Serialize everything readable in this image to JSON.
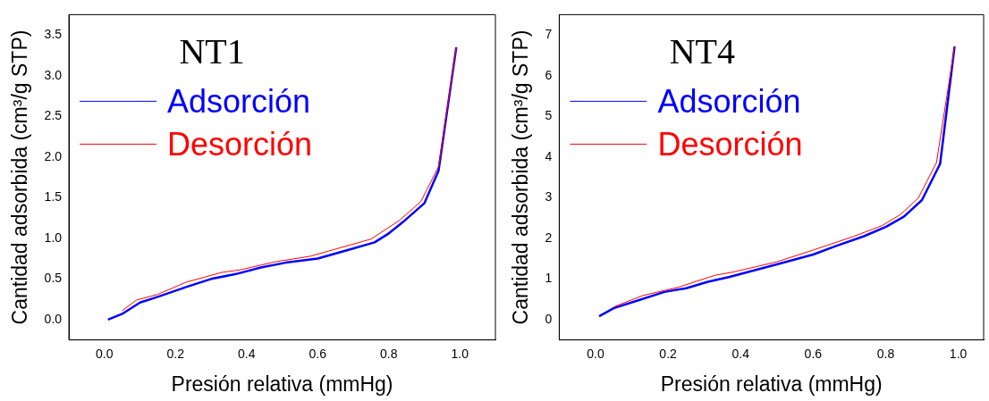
{
  "chart_data": [
    {
      "type": "line",
      "title": "NT1",
      "xlabel": "Presión relativa (mmHg)",
      "ylabel": "Cantidad adsorbida (cm³/g STP)",
      "legend": "top left",
      "grid": false,
      "marker": "none",
      "line_style": "solid",
      "xlim": [
        -0.1,
        1.1
      ],
      "xticks": [
        {
          "value": 0,
          "label": "0.0"
        },
        {
          "value": 0.2,
          "label": "0.2"
        },
        {
          "value": 0.4,
          "label": "0.4"
        },
        {
          "value": 0.6,
          "label": "0.6"
        },
        {
          "value": 0.8,
          "label": "0.8"
        },
        {
          "value": 1,
          "label": "1.0"
        }
      ],
      "ylim": [
        -0.25,
        3.75
      ],
      "yticks": [
        {
          "value": 0,
          "label": "0.0"
        },
        {
          "value": 0.5,
          "label": "0.5"
        },
        {
          "value": 1,
          "label": "1.0"
        },
        {
          "value": 1.5,
          "label": "1.5"
        },
        {
          "value": 2,
          "label": "2.0"
        },
        {
          "value": 2.5,
          "label": "2.5"
        },
        {
          "value": 3,
          "label": "3.0"
        },
        {
          "value": 3.5,
          "label": "3.5"
        }
      ],
      "series": [
        {
          "name": "Adsorción",
          "color": "#0000ff",
          "x": [
            0.01,
            0.05,
            0.1,
            0.15,
            0.23,
            0.3,
            0.37,
            0.44,
            0.51,
            0.6,
            0.68,
            0.76,
            0.8,
            0.84,
            0.9,
            0.94,
            0.99
          ],
          "values": [
            0.0,
            0.07,
            0.21,
            0.28,
            0.4,
            0.5,
            0.56,
            0.64,
            0.7,
            0.75,
            0.85,
            0.95,
            1.06,
            1.2,
            1.43,
            1.83,
            3.35
          ]
        },
        {
          "name": "Desorción",
          "color": "#ff0000",
          "x": [
            0.05,
            0.09,
            0.15,
            0.23,
            0.33,
            0.38,
            0.48,
            0.58,
            0.75,
            0.83,
            0.89,
            0.94,
            0.99
          ],
          "values": [
            0.11,
            0.24,
            0.31,
            0.46,
            0.58,
            0.61,
            0.71,
            0.78,
            0.99,
            1.22,
            1.45,
            1.88,
            3.35
          ]
        }
      ]
    },
    {
      "type": "line",
      "title": "NT4",
      "xlabel": "Presión relativa (mmHg)",
      "ylabel": "Cantidad adsorbida (cm³/g STP)",
      "legend": "top left",
      "grid": false,
      "marker": "none",
      "line_style": "solid",
      "xlim": [
        -0.1,
        1.07
      ],
      "xticks": [
        {
          "value": 0,
          "label": "0.0"
        },
        {
          "value": 0.2,
          "label": "0.2"
        },
        {
          "value": 0.4,
          "label": "0.4"
        },
        {
          "value": 0.6,
          "label": "0.6"
        },
        {
          "value": 0.8,
          "label": "0.8"
        },
        {
          "value": 1,
          "label": "1.0"
        }
      ],
      "ylim": [
        -0.5,
        7.5
      ],
      "yticks": [
        0,
        1,
        2,
        3,
        4,
        5,
        6,
        7
      ],
      "series": [
        {
          "name": "Adsorción",
          "color": "#0000ff",
          "x": [
            0.01,
            0.05,
            0.12,
            0.19,
            0.25,
            0.31,
            0.37,
            0.5,
            0.6,
            0.66,
            0.74,
            0.8,
            0.85,
            0.9,
            0.95,
            0.99
          ],
          "values": [
            0.08,
            0.28,
            0.48,
            0.68,
            0.77,
            0.93,
            1.05,
            1.36,
            1.6,
            1.8,
            2.05,
            2.28,
            2.53,
            2.94,
            3.83,
            6.72
          ]
        },
        {
          "name": "Desorción",
          "color": "#ff0000",
          "x": [
            0.05,
            0.13,
            0.23,
            0.33,
            0.38,
            0.5,
            0.6,
            0.71,
            0.79,
            0.84,
            0.89,
            0.94,
            0.99
          ],
          "values": [
            0.31,
            0.59,
            0.8,
            1.09,
            1.17,
            1.42,
            1.71,
            2.04,
            2.31,
            2.58,
            2.99,
            3.86,
            6.72
          ]
        }
      ]
    }
  ]
}
